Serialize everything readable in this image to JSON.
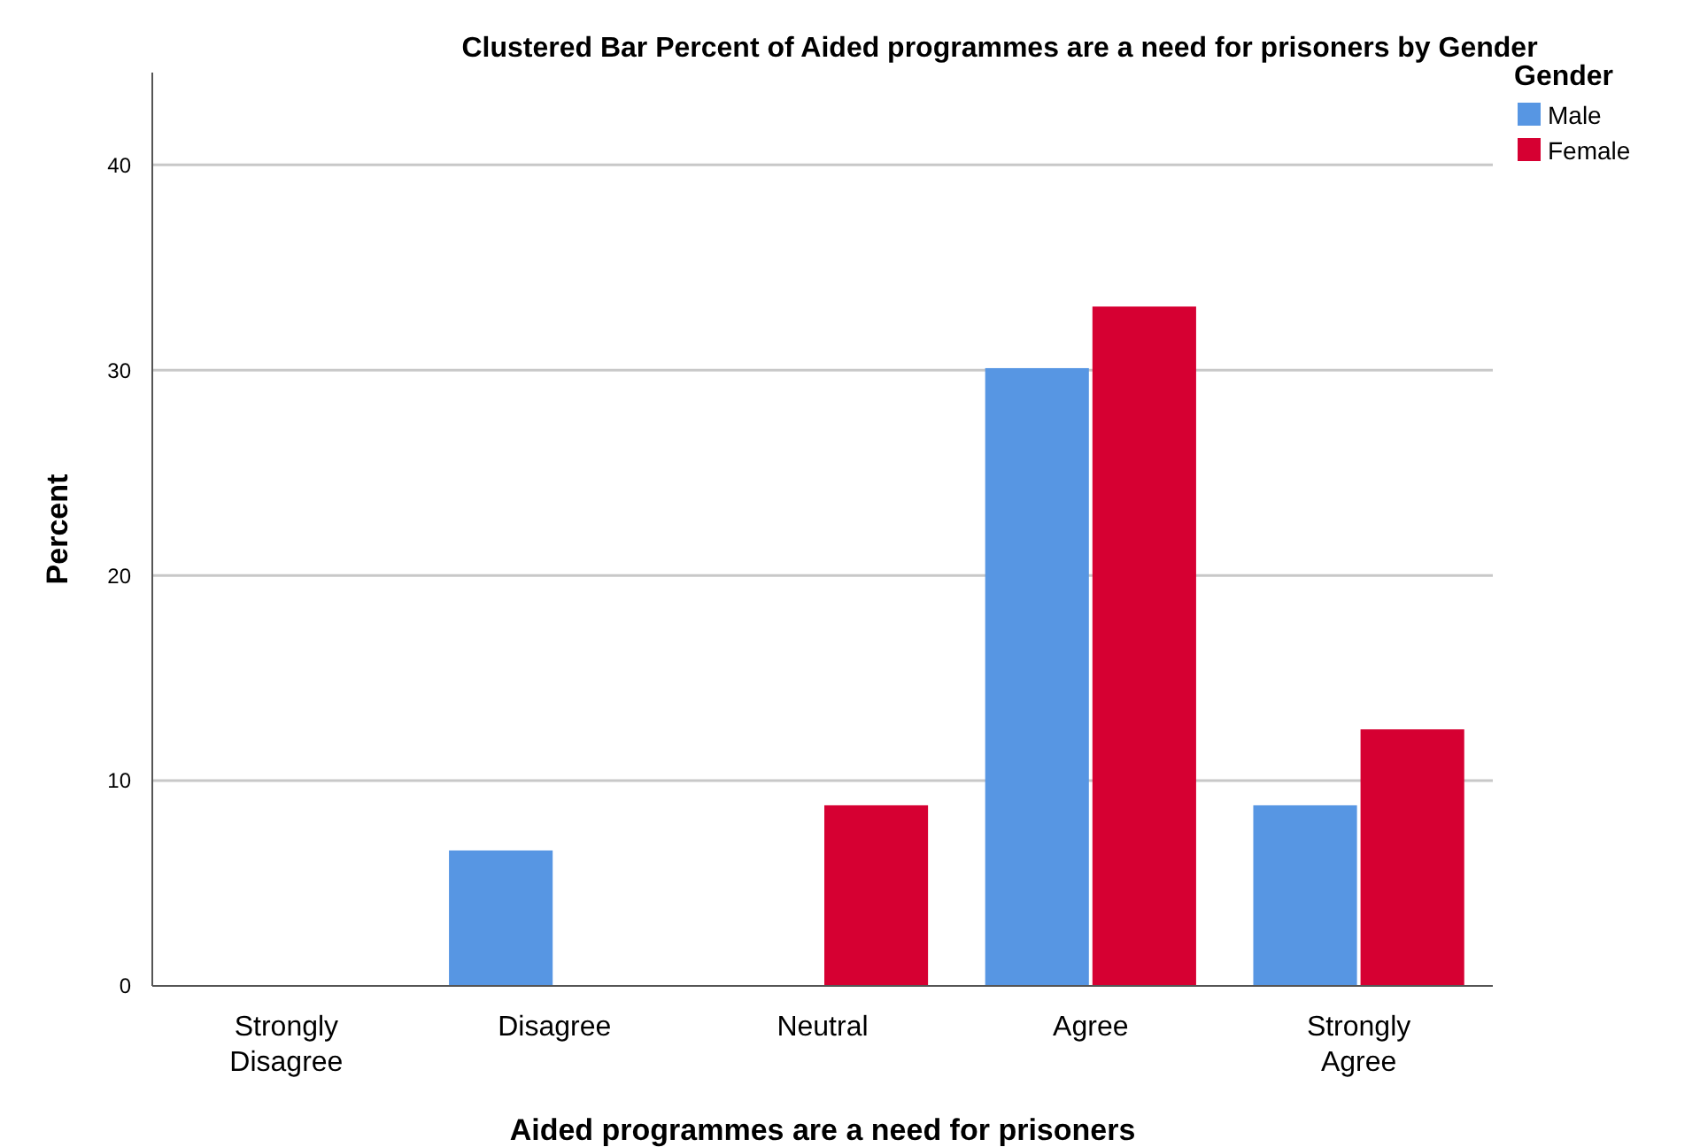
{
  "chart_data": {
    "type": "bar",
    "title": "Clustered Bar Percent of Aided programmes are a need for prisoners by  Gender",
    "xlabel": "Aided programmes are a need for prisoners",
    "ylabel": "Percent",
    "legend_title": "Gender",
    "categories": [
      "Strongly\nDisagree",
      "Disagree",
      "Neutral",
      "Agree",
      "Strongly\nAgree"
    ],
    "series": [
      {
        "name": "Male",
        "color": "#5796e3",
        "values": [
          0,
          6.6,
          0,
          30.1,
          8.8
        ]
      },
      {
        "name": "Female",
        "color": "#d60032",
        "values": [
          0,
          0,
          8.8,
          33.1,
          12.5
        ]
      }
    ],
    "ylim": [
      0,
      44.5
    ],
    "yticks": [
      0,
      10,
      20,
      30,
      40
    ],
    "grid": "y",
    "legend": "top right"
  }
}
